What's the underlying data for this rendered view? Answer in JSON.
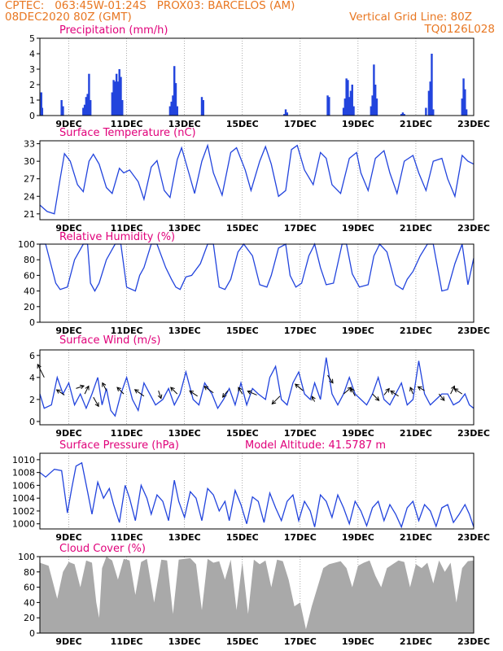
{
  "header": {
    "line1_left": "CPTEC:   063:45W-01:24S   PROX03: BARCELOS (AM)",
    "line2_left": "08DEC2020 80Z (GMT)",
    "line2_right": "Vertical Grid Line: 80Z",
    "line3_right": "TQ0126L028"
  },
  "colors": {
    "header": "#e87722",
    "title": "#e0007a",
    "line": "#2244dd",
    "cloud": "#a9a9a9",
    "grid": "#888888"
  },
  "x_ticks": [
    "9DEC",
    "11DEC",
    "13DEC",
    "15DEC",
    "17DEC",
    "19DEC",
    "21DEC",
    "23DEC"
  ],
  "chart_data": [
    {
      "type": "bar",
      "title": "Precipitation (mm/h)",
      "ylim": [
        0,
        5
      ],
      "yticks": [
        "0",
        "1",
        "2",
        "3",
        "4",
        "5"
      ],
      "bars": [
        [
          8.05,
          1.5
        ],
        [
          8.08,
          0.5
        ],
        [
          8.75,
          1.0
        ],
        [
          8.8,
          0.6
        ],
        [
          9.5,
          0.5
        ],
        [
          9.55,
          0.7
        ],
        [
          9.6,
          1.2
        ],
        [
          9.65,
          1.4
        ],
        [
          9.7,
          2.7
        ],
        [
          9.75,
          1.0
        ],
        [
          10.5,
          1.5
        ],
        [
          10.55,
          2.3
        ],
        [
          10.6,
          2.2
        ],
        [
          10.65,
          2.7
        ],
        [
          10.7,
          2.2
        ],
        [
          10.75,
          3.0
        ],
        [
          10.8,
          2.5
        ],
        [
          10.85,
          1.0
        ],
        [
          12.5,
          0.6
        ],
        [
          12.55,
          0.9
        ],
        [
          12.6,
          1.3
        ],
        [
          12.65,
          3.2
        ],
        [
          12.7,
          2.1
        ],
        [
          12.75,
          0.6
        ],
        [
          13.6,
          1.2
        ],
        [
          13.65,
          1.0
        ],
        [
          16.45,
          0.1
        ],
        [
          16.5,
          0.4
        ],
        [
          16.55,
          0.2
        ],
        [
          17.95,
          1.3
        ],
        [
          18.0,
          1.2
        ],
        [
          18.5,
          0.5
        ],
        [
          18.55,
          1.1
        ],
        [
          18.6,
          2.4
        ],
        [
          18.65,
          2.3
        ],
        [
          18.7,
          1.2
        ],
        [
          18.75,
          1.6
        ],
        [
          18.8,
          2.0
        ],
        [
          18.85,
          0.6
        ],
        [
          19.45,
          0.6
        ],
        [
          19.5,
          1.3
        ],
        [
          19.55,
          3.3
        ],
        [
          19.6,
          2.0
        ],
        [
          19.65,
          1.1
        ],
        [
          20.5,
          0.1
        ],
        [
          20.55,
          0.2
        ],
        [
          20.6,
          0.1
        ],
        [
          21.35,
          0.5
        ],
        [
          21.45,
          1.6
        ],
        [
          21.5,
          2.2
        ],
        [
          21.55,
          4.0
        ],
        [
          21.6,
          0.4
        ],
        [
          22.6,
          1.1
        ],
        [
          22.65,
          2.4
        ],
        [
          22.7,
          1.7
        ],
        [
          22.75,
          0.4
        ]
      ]
    },
    {
      "type": "line",
      "title": "Surface Temperature (nC)",
      "ylim": [
        20,
        33.5
      ],
      "yticks": [
        "21",
        "24",
        "27",
        "30",
        "33"
      ],
      "x": [
        8.0,
        8.25,
        8.5,
        8.7,
        8.85,
        9.05,
        9.3,
        9.5,
        9.7,
        9.85,
        10.05,
        10.3,
        10.5,
        10.75,
        10.9,
        11.1,
        11.4,
        11.6,
        11.85,
        12.05,
        12.3,
        12.5,
        12.75,
        12.9,
        13.15,
        13.35,
        13.6,
        13.8,
        14.0,
        14.3,
        14.6,
        14.8,
        15.1,
        15.3,
        15.6,
        15.8,
        16.0,
        16.25,
        16.5,
        16.7,
        16.9,
        17.15,
        17.45,
        17.7,
        17.9,
        18.1,
        18.4,
        18.7,
        18.95,
        19.1,
        19.35,
        19.6,
        19.9,
        20.1,
        20.35,
        20.6,
        20.9,
        21.1,
        21.35,
        21.6,
        21.9,
        22.1,
        22.35,
        22.6,
        22.8,
        23.0
      ],
      "y": [
        22.5,
        21.4,
        21.0,
        27.0,
        31.3,
        30.0,
        26.0,
        24.8,
        30.0,
        31.2,
        29.5,
        25.5,
        24.5,
        28.8,
        28.0,
        28.5,
        26.5,
        23.5,
        29.0,
        30.1,
        25.0,
        23.8,
        30.3,
        32.3,
        28.0,
        24.5,
        30.0,
        32.7,
        28.0,
        24.2,
        31.5,
        32.3,
        28.5,
        25.0,
        30.0,
        32.5,
        29.5,
        24.0,
        25.0,
        32.0,
        32.7,
        28.5,
        26.0,
        31.5,
        30.5,
        26.0,
        24.5,
        30.5,
        31.5,
        28.0,
        25.0,
        30.5,
        31.8,
        28.0,
        24.5,
        30.0,
        31.0,
        28.0,
        25.0,
        30.0,
        30.5,
        27.0,
        24.0,
        31.0,
        30.0,
        29.5
      ]
    },
    {
      "type": "line",
      "title": "Relative Humidity (%)",
      "ylim": [
        0,
        100
      ],
      "yticks": [
        "0",
        "20",
        "40",
        "60",
        "80",
        "100"
      ],
      "x": [
        8.0,
        8.2,
        8.55,
        8.7,
        8.95,
        9.2,
        9.5,
        9.65,
        9.75,
        9.9,
        10.05,
        10.3,
        10.6,
        10.8,
        11.0,
        11.3,
        11.45,
        11.6,
        11.85,
        12.05,
        12.35,
        12.55,
        12.7,
        12.85,
        13.05,
        13.25,
        13.55,
        13.8,
        14.0,
        14.2,
        14.4,
        14.6,
        14.85,
        15.05,
        15.35,
        15.6,
        15.85,
        16.0,
        16.25,
        16.5,
        16.65,
        16.85,
        17.05,
        17.3,
        17.5,
        17.7,
        17.9,
        18.15,
        18.45,
        18.6,
        18.8,
        19.05,
        19.35,
        19.55,
        19.75,
        20.0,
        20.3,
        20.55,
        20.7,
        20.9,
        21.15,
        21.4,
        21.6,
        21.9,
        22.1,
        22.35,
        22.6,
        22.8,
        23.0
      ],
      "y": [
        100,
        100,
        50,
        42,
        45,
        80,
        100,
        100,
        50,
        40,
        50,
        80,
        100,
        100,
        45,
        40,
        60,
        70,
        100,
        100,
        70,
        55,
        45,
        42,
        58,
        60,
        75,
        100,
        100,
        45,
        42,
        55,
        90,
        100,
        85,
        48,
        45,
        60,
        95,
        100,
        60,
        45,
        50,
        85,
        100,
        70,
        48,
        50,
        100,
        100,
        62,
        45,
        48,
        85,
        100,
        90,
        48,
        42,
        55,
        65,
        85,
        100,
        100,
        40,
        42,
        75,
        100,
        48,
        82
      ]
    },
    {
      "type": "line",
      "title": "Surface Wind (m/s)",
      "ylim": [
        -0.3,
        6.5
      ],
      "yticks": [
        "0",
        "2",
        "4",
        "6"
      ],
      "x": [
        8.0,
        8.15,
        8.4,
        8.6,
        8.8,
        9.0,
        9.2,
        9.4,
        9.6,
        9.8,
        10.0,
        10.15,
        10.3,
        10.45,
        10.6,
        10.8,
        11.0,
        11.2,
        11.4,
        11.6,
        11.8,
        12.0,
        12.25,
        12.45,
        12.65,
        12.85,
        13.05,
        13.3,
        13.5,
        13.7,
        13.95,
        14.15,
        14.35,
        14.55,
        14.75,
        14.95,
        15.15,
        15.35,
        15.55,
        15.8,
        15.95,
        16.15,
        16.35,
        16.55,
        16.75,
        16.95,
        17.15,
        17.35,
        17.5,
        17.7,
        17.9,
        18.1,
        18.3,
        18.5,
        18.7,
        18.9,
        19.1,
        19.3,
        19.5,
        19.7,
        19.9,
        20.1,
        20.3,
        20.5,
        20.7,
        20.9,
        21.1,
        21.3,
        21.5,
        21.7,
        21.9,
        22.1,
        22.3,
        22.5,
        22.7,
        22.85,
        23.0
      ],
      "y": [
        2.5,
        1.2,
        1.5,
        4.0,
        2.5,
        3.5,
        1.5,
        2.5,
        1.2,
        2.5,
        4.0,
        1.5,
        3.0,
        1.0,
        0.5,
        2.5,
        4.0,
        2.0,
        1.0,
        3.5,
        2.5,
        1.5,
        2.0,
        3.0,
        1.5,
        2.5,
        4.5,
        2.0,
        1.5,
        3.5,
        2.5,
        1.2,
        2.0,
        3.0,
        1.5,
        3.5,
        1.5,
        3.0,
        2.5,
        2.0,
        4.0,
        5.0,
        2.0,
        1.5,
        3.5,
        4.5,
        2.5,
        2.0,
        3.5,
        2.0,
        5.8,
        2.5,
        1.5,
        2.5,
        4.0,
        2.5,
        2.0,
        1.5,
        2.5,
        4.0,
        2.0,
        1.5,
        2.5,
        3.5,
        1.5,
        2.0,
        5.5,
        2.5,
        1.5,
        2.0,
        2.5,
        2.5,
        1.5,
        1.8,
        2.5,
        1.5,
        1.2
      ],
      "arrows": [
        [
          8.15,
          4.0,
          -0.5,
          1
        ],
        [
          8.85,
          2.4,
          -0.6,
          0.4
        ],
        [
          9.25,
          3.0,
          0.6,
          0.2
        ],
        [
          9.55,
          2.5,
          0.3,
          0.6
        ],
        [
          9.85,
          2.2,
          0.4,
          -0.7
        ],
        [
          10.3,
          2.8,
          -0.3,
          0.6
        ],
        [
          10.9,
          2.5,
          -0.5,
          0.5
        ],
        [
          11.6,
          2.3,
          -0.7,
          0.5
        ],
        [
          12.1,
          2.8,
          0.2,
          -0.6
        ],
        [
          12.75,
          2.5,
          -0.5,
          0.5
        ],
        [
          13.45,
          2.3,
          -0.6,
          0.4
        ],
        [
          14.0,
          2.6,
          -0.7,
          0.5
        ],
        [
          14.5,
          2.8,
          -0.4,
          -0.5
        ],
        [
          15.0,
          2.5,
          -0.3,
          0.5
        ],
        [
          15.5,
          2.4,
          -0.7,
          0.3
        ],
        [
          16.3,
          2.3,
          -0.6,
          -0.6
        ],
        [
          17.1,
          2.8,
          -0.6,
          0.5
        ],
        [
          17.5,
          1.8,
          -0.2,
          0.4
        ],
        [
          17.95,
          4.2,
          0.4,
          -0.6
        ],
        [
          18.5,
          2.5,
          0.6,
          0.5
        ],
        [
          18.9,
          2.3,
          -0.3,
          0.6
        ],
        [
          19.5,
          2.5,
          0.5,
          -0.5
        ],
        [
          19.9,
          2.4,
          0.4,
          0.5
        ],
        [
          20.4,
          2.3,
          -0.6,
          0.4
        ],
        [
          20.9,
          2.5,
          -0.2,
          0.5
        ],
        [
          21.3,
          2.8,
          -0.5,
          0.3
        ],
        [
          21.8,
          2.5,
          0.4,
          -0.5
        ],
        [
          22.2,
          2.5,
          0.3,
          0.6
        ],
        [
          22.6,
          2.5,
          -0.6,
          0.4
        ]
      ]
    },
    {
      "type": "line",
      "title": "Surface Pressure (hPa)",
      "annotation": "Model Altitude: 41.5787 m",
      "ylim": [
        999.2,
        1011
      ],
      "yticks": [
        "1000",
        "1002",
        "1004",
        "1006",
        "1008",
        "1010"
      ],
      "x": [
        8.0,
        8.2,
        8.5,
        8.75,
        8.95,
        9.1,
        9.25,
        9.45,
        9.65,
        9.8,
        10.0,
        10.2,
        10.4,
        10.55,
        10.75,
        10.95,
        11.1,
        11.3,
        11.5,
        11.7,
        11.85,
        12.05,
        12.25,
        12.45,
        12.65,
        12.8,
        13.0,
        13.2,
        13.4,
        13.6,
        13.8,
        14.0,
        14.2,
        14.4,
        14.55,
        14.75,
        14.95,
        15.15,
        15.35,
        15.55,
        15.75,
        15.95,
        16.15,
        16.35,
        16.55,
        16.75,
        16.95,
        17.15,
        17.35,
        17.5,
        17.7,
        17.9,
        18.1,
        18.3,
        18.5,
        18.7,
        18.9,
        19.1,
        19.3,
        19.5,
        19.7,
        19.9,
        20.1,
        20.3,
        20.5,
        20.7,
        20.9,
        21.1,
        21.3,
        21.5,
        21.7,
        21.9,
        22.1,
        22.3,
        22.5,
        22.7,
        22.85,
        23.0
      ],
      "y": [
        1008.0,
        1007.3,
        1008.5,
        1008.3,
        1001.7,
        1005.5,
        1009.0,
        1009.5,
        1005.0,
        1001.5,
        1006.5,
        1004.0,
        1005.5,
        1003.0,
        1000.2,
        1006.0,
        1004.0,
        1000.5,
        1006.0,
        1004.0,
        1001.5,
        1004.5,
        1003.5,
        1000.5,
        1006.8,
        1003.5,
        1001.0,
        1005.0,
        1004.0,
        1000.5,
        1005.5,
        1004.5,
        1002.0,
        1003.5,
        1000.5,
        1005.2,
        1003.0,
        1000.0,
        1004.2,
        1003.5,
        1000.2,
        1004.8,
        1002.5,
        1000.5,
        1003.5,
        1004.5,
        1000.5,
        1003.5,
        1002.0,
        999.5,
        1004.5,
        1003.5,
        1001.0,
        1004.5,
        1002.5,
        1000.0,
        1003.5,
        1002.0,
        999.7,
        1002.5,
        1003.5,
        1000.5,
        1003.0,
        1001.5,
        999.5,
        1002.5,
        1003.5,
        1000.5,
        1003.0,
        1002.0,
        999.6,
        1002.5,
        1003.0,
        1000.2,
        1001.5,
        1003.0,
        1001.5,
        999.5
      ]
    },
    {
      "type": "area",
      "title": "Cloud Cover (%)",
      "ylim": [
        0,
        100
      ],
      "yticks": [
        "0",
        "20",
        "40",
        "60",
        "80",
        "100"
      ],
      "x": [
        8.0,
        8.3,
        8.6,
        8.8,
        9.0,
        9.2,
        9.4,
        9.6,
        9.8,
        9.95,
        10.05,
        10.15,
        10.3,
        10.5,
        10.7,
        10.9,
        11.1,
        11.3,
        11.5,
        11.7,
        11.95,
        12.2,
        12.4,
        12.6,
        12.8,
        13.0,
        13.2,
        13.4,
        13.6,
        13.8,
        14.0,
        14.2,
        14.4,
        14.6,
        14.8,
        15.0,
        15.2,
        15.4,
        15.6,
        15.8,
        16.0,
        16.2,
        16.4,
        16.6,
        16.8,
        17.0,
        17.2,
        17.4,
        17.6,
        17.8,
        18.0,
        18.2,
        18.4,
        18.6,
        18.8,
        19.0,
        19.2,
        19.4,
        19.6,
        19.8,
        20.0,
        20.2,
        20.4,
        20.6,
        20.8,
        21.0,
        21.2,
        21.4,
        21.6,
        21.8,
        22.0,
        22.2,
        22.4,
        22.6,
        22.8,
        23.0
      ],
      "y": [
        92,
        88,
        45,
        80,
        93,
        90,
        60,
        95,
        92,
        40,
        20,
        85,
        100,
        95,
        70,
        97,
        95,
        50,
        93,
        97,
        40,
        96,
        95,
        25,
        96,
        97,
        98,
        90,
        30,
        97,
        92,
        94,
        70,
        96,
        30,
        93,
        25,
        96,
        90,
        95,
        60,
        96,
        94,
        70,
        35,
        40,
        5,
        35,
        60,
        85,
        90,
        92,
        94,
        85,
        60,
        88,
        92,
        95,
        75,
        60,
        85,
        90,
        95,
        93,
        60,
        90,
        85,
        92,
        65,
        95,
        80,
        92,
        40,
        85,
        94,
        95
      ]
    }
  ]
}
